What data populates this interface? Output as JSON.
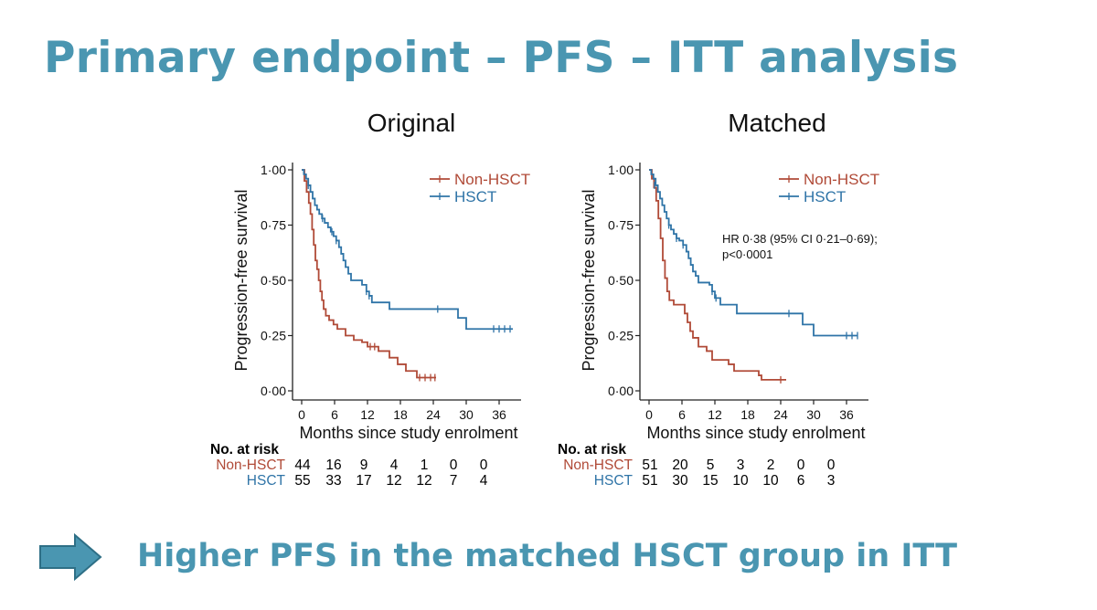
{
  "slide": {
    "title": "Primary endpoint – PFS – ITT analysis",
    "conclusion": "Higher PFS in the matched HSCT group in ITT"
  },
  "colors": {
    "accent": "#4a96b1",
    "non_hsct": "#b04a37",
    "hsct": "#2f74a7"
  },
  "icons": {
    "arrow": "right-arrow-icon"
  },
  "risk_header": "No. at risk",
  "chart_data": [
    {
      "type": "line",
      "subtype": "kaplan-meier",
      "title": "Original",
      "xlabel": "Months since study enrolment",
      "ylabel": "Progression-free survival",
      "xlim": [
        0,
        40
      ],
      "ylim": [
        0,
        1
      ],
      "xticks": [
        0,
        6,
        12,
        18,
        24,
        30,
        36
      ],
      "yticks": [
        "0·00",
        "0·25",
        "0·50",
        "0·75",
        "1·00"
      ],
      "yticks_values": [
        0,
        0.25,
        0.5,
        0.75,
        1
      ],
      "grid": false,
      "legend": "top-right",
      "annotation": "",
      "series": [
        {
          "name": "Non-HSCT",
          "color": "#b04a37",
          "steps": [
            [
              0,
              1.0
            ],
            [
              0.5,
              0.95
            ],
            [
              0.9,
              0.9
            ],
            [
              1.3,
              0.85
            ],
            [
              1.6,
              0.8
            ],
            [
              1.9,
              0.73
            ],
            [
              2.2,
              0.66
            ],
            [
              2.5,
              0.59
            ],
            [
              2.8,
              0.55
            ],
            [
              3.1,
              0.5
            ],
            [
              3.4,
              0.45
            ],
            [
              3.7,
              0.41
            ],
            [
              4.0,
              0.37
            ],
            [
              4.4,
              0.34
            ],
            [
              5.0,
              0.32
            ],
            [
              5.8,
              0.3
            ],
            [
              6.5,
              0.28
            ],
            [
              8.0,
              0.25
            ],
            [
              9.5,
              0.23
            ],
            [
              11,
              0.22
            ],
            [
              12,
              0.2
            ],
            [
              14,
              0.18
            ],
            [
              16,
              0.15
            ],
            [
              17.5,
              0.12
            ],
            [
              19,
              0.09
            ],
            [
              21,
              0.06
            ],
            [
              24.5,
              0.06
            ]
          ],
          "censor": [
            [
              12.5,
              0.2
            ],
            [
              13.3,
              0.2
            ],
            [
              21.5,
              0.06
            ],
            [
              22.5,
              0.06
            ],
            [
              23.5,
              0.06
            ],
            [
              24.3,
              0.06
            ]
          ]
        },
        {
          "name": "HSCT",
          "color": "#2f74a7",
          "steps": [
            [
              0,
              1.0
            ],
            [
              0.4,
              0.98
            ],
            [
              0.8,
              0.96
            ],
            [
              1.2,
              0.93
            ],
            [
              1.6,
              0.9
            ],
            [
              2.0,
              0.87
            ],
            [
              2.4,
              0.84
            ],
            [
              2.8,
              0.82
            ],
            [
              3.2,
              0.8
            ],
            [
              3.7,
              0.78
            ],
            [
              4.2,
              0.76
            ],
            [
              4.8,
              0.74
            ],
            [
              5.3,
              0.72
            ],
            [
              5.8,
              0.7
            ],
            [
              6.3,
              0.68
            ],
            [
              6.8,
              0.65
            ],
            [
              7.2,
              0.62
            ],
            [
              7.6,
              0.59
            ],
            [
              8.0,
              0.56
            ],
            [
              8.5,
              0.53
            ],
            [
              9.0,
              0.5
            ],
            [
              11.0,
              0.48
            ],
            [
              11.8,
              0.45
            ],
            [
              12.3,
              0.43
            ],
            [
              12.8,
              0.4
            ],
            [
              16.0,
              0.37
            ],
            [
              28.5,
              0.33
            ],
            [
              30.0,
              0.28
            ],
            [
              38.5,
              0.28
            ]
          ],
          "censor": [
            [
              1.2,
              0.93
            ],
            [
              3.8,
              0.78
            ],
            [
              5.5,
              0.72
            ],
            [
              6.3,
              0.68
            ],
            [
              11.8,
              0.45
            ],
            [
              12.3,
              0.43
            ],
            [
              24.8,
              0.37
            ],
            [
              35.0,
              0.28
            ],
            [
              36.0,
              0.28
            ],
            [
              37.0,
              0.28
            ],
            [
              38.0,
              0.28
            ]
          ]
        }
      ],
      "risk_table": {
        "Non-HSCT": [
          44,
          16,
          9,
          4,
          1,
          0,
          0
        ],
        "HSCT": [
          55,
          33,
          17,
          12,
          12,
          7,
          4
        ]
      }
    },
    {
      "type": "line",
      "subtype": "kaplan-meier",
      "title": "Matched",
      "xlabel": "Months since study enrolment",
      "ylabel": "Progression-free survival",
      "xlim": [
        0,
        40
      ],
      "ylim": [
        0,
        1
      ],
      "xticks": [
        0,
        6,
        12,
        18,
        24,
        30,
        36
      ],
      "yticks": [
        "0·00",
        "0·25",
        "0·50",
        "0·75",
        "1·00"
      ],
      "yticks_values": [
        0,
        0.25,
        0.5,
        0.75,
        1
      ],
      "grid": false,
      "legend": "top-right",
      "annotation": "HR 0·38 (95% CI 0·21–0·69);\np<0·0001",
      "series": [
        {
          "name": "Non-HSCT",
          "color": "#b04a37",
          "steps": [
            [
              0,
              1.0
            ],
            [
              0.5,
              0.96
            ],
            [
              0.9,
              0.92
            ],
            [
              1.3,
              0.86
            ],
            [
              1.7,
              0.78
            ],
            [
              2.1,
              0.69
            ],
            [
              2.5,
              0.59
            ],
            [
              2.9,
              0.51
            ],
            [
              3.3,
              0.45
            ],
            [
              3.7,
              0.41
            ],
            [
              4.5,
              0.39
            ],
            [
              6.5,
              0.35
            ],
            [
              7.0,
              0.31
            ],
            [
              7.5,
              0.27
            ],
            [
              8.0,
              0.24
            ],
            [
              9.0,
              0.2
            ],
            [
              10.5,
              0.18
            ],
            [
              11.5,
              0.14
            ],
            [
              14.5,
              0.12
            ],
            [
              15.5,
              0.09
            ],
            [
              20.0,
              0.07
            ],
            [
              20.5,
              0.05
            ],
            [
              25.0,
              0.05
            ]
          ],
          "censor": [
            [
              24.0,
              0.05
            ]
          ]
        },
        {
          "name": "HSCT",
          "color": "#2f74a7",
          "steps": [
            [
              0,
              1.0
            ],
            [
              0.4,
              0.98
            ],
            [
              0.8,
              0.96
            ],
            [
              1.2,
              0.93
            ],
            [
              1.6,
              0.9
            ],
            [
              2.0,
              0.87
            ],
            [
              2.4,
              0.84
            ],
            [
              2.8,
              0.81
            ],
            [
              3.2,
              0.78
            ],
            [
              3.6,
              0.75
            ],
            [
              4.0,
              0.73
            ],
            [
              4.5,
              0.71
            ],
            [
              5.0,
              0.69
            ],
            [
              5.5,
              0.68
            ],
            [
              6.2,
              0.66
            ],
            [
              6.8,
              0.63
            ],
            [
              7.2,
              0.6
            ],
            [
              7.6,
              0.57
            ],
            [
              8.0,
              0.54
            ],
            [
              8.5,
              0.52
            ],
            [
              9.0,
              0.49
            ],
            [
              11.0,
              0.48
            ],
            [
              11.5,
              0.45
            ],
            [
              12.0,
              0.42
            ],
            [
              13.0,
              0.39
            ],
            [
              16.0,
              0.35
            ],
            [
              28.0,
              0.3
            ],
            [
              30.0,
              0.25
            ],
            [
              38.0,
              0.25
            ]
          ],
          "censor": [
            [
              1.0,
              0.93
            ],
            [
              3.6,
              0.75
            ],
            [
              5.0,
              0.69
            ],
            [
              6.2,
              0.66
            ],
            [
              11.5,
              0.45
            ],
            [
              12.2,
              0.42
            ],
            [
              25.5,
              0.35
            ],
            [
              36.0,
              0.25
            ],
            [
              37.0,
              0.25
            ],
            [
              38.0,
              0.25
            ]
          ]
        }
      ],
      "risk_table": {
        "Non-HSCT": [
          51,
          20,
          5,
          3,
          2,
          0,
          0
        ],
        "HSCT": [
          51,
          30,
          15,
          10,
          10,
          6,
          3
        ]
      }
    }
  ]
}
